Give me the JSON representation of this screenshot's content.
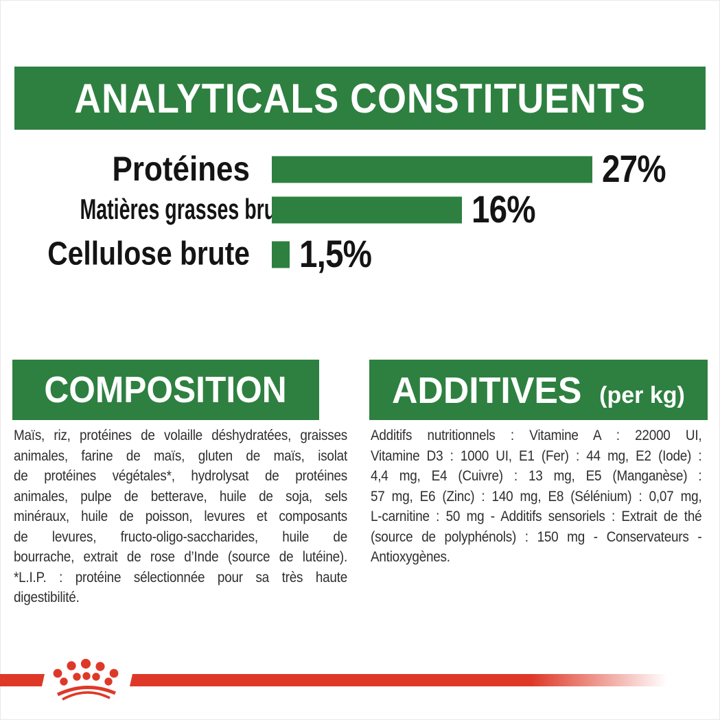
{
  "analyticals": {
    "title": "ANALYTICALS CONSTITUENTS"
  },
  "chart_data": {
    "type": "bar",
    "orientation": "horizontal",
    "title": "ANALYTICALS CONSTITUENTS",
    "categories": [
      "Protéines",
      "Matières grasses brutes",
      "Cellulose brute"
    ],
    "values": [
      27,
      16,
      1.5
    ],
    "value_labels": [
      "27%",
      "16%",
      "1,5%"
    ],
    "unit": "%",
    "xlim": [
      0,
      27
    ],
    "bar_color": "#2e8040",
    "value_label_position": "right-of-bar",
    "grid": false,
    "legend": false
  },
  "composition": {
    "heading": "COMPOSITION",
    "lines": [
      "Maïs, riz, protéines de volaille déshydratées, graisses",
      "animales, farine de maïs, gluten de maïs, isolat",
      "de protéines végétales*, hydrolysat de protéines",
      "animales, pulpe de betterave, huile de soja, sels",
      "minéraux, huile de poisson, levures et composants",
      "de levures, fructo-oligo-saccharides, huile de",
      "bourrache, extrait de rose d’Inde (source de lutéine).",
      "*L.I.P. : protéine sélectionnée pour sa très haute",
      "digestibilité."
    ]
  },
  "additives": {
    "heading": "ADDITIVES",
    "heading_suffix": "(per kg)",
    "lines": [
      "Additifs nutritionnels : Vitamine A : 22000 UI,",
      "Vitamine D3 : 1000 UI, E1 (Fer) : 44 mg, E2 (Iode) :",
      "4,4 mg, E4 (Cuivre) : 13 mg, E5 (Manganèse) :",
      "57 mg, E6 (Zinc) : 140 mg, E8 (Sélénium) : 0,07 mg,",
      "L-carnitine : 50 mg - Additifs sensoriels : Extrait de thé",
      "(source de polyphénols) : 150 mg - Conservateurs -",
      "Antioxygènes."
    ]
  },
  "footer": {
    "logo_icon": "royal-canin-crown-logo"
  },
  "colors": {
    "green": "#2e8040",
    "red": "#de3928",
    "text": "#2e2e2e",
    "heading_text": "#ffffff",
    "label_text": "#141414"
  }
}
